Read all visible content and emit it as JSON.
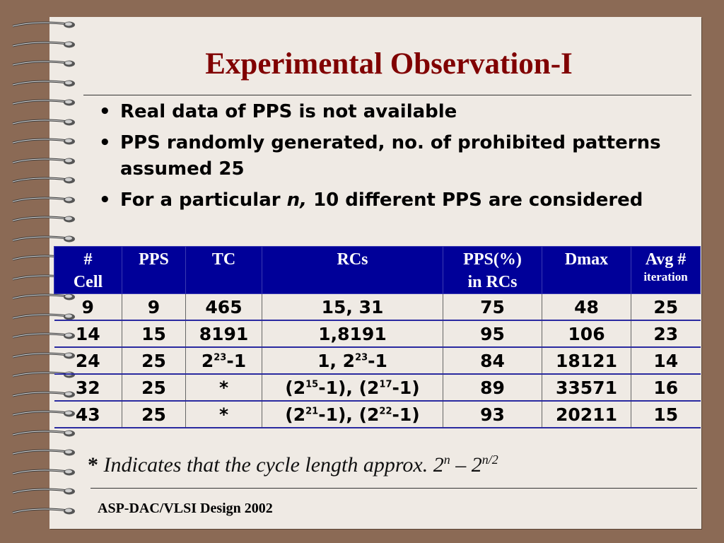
{
  "slide": {
    "title": "Experimental Observation-I",
    "bullets": [
      {
        "marker": "•",
        "parts": [
          {
            "t": "Real data of PPS is not available",
            "i": false
          }
        ]
      },
      {
        "marker": "•",
        "parts": [
          {
            "t": "PPS randomly generated, no. of prohibited patterns assumed  25",
            "i": false
          }
        ]
      },
      {
        "marker": "•",
        "parts": [
          {
            "t": "For a particular ",
            "i": false
          },
          {
            "t": "n,",
            "i": true
          },
          {
            "t": " 10 different PPS are considered",
            "i": false
          }
        ]
      }
    ],
    "table": {
      "headers": [
        {
          "lines": [
            "#",
            "Cell"
          ],
          "small": ""
        },
        {
          "lines": [
            "PPS"
          ],
          "small": ""
        },
        {
          "lines": [
            "TC"
          ],
          "small": ""
        },
        {
          "lines": [
            "RCs"
          ],
          "small": ""
        },
        {
          "lines": [
            "PPS(%)",
            "in RCs"
          ],
          "small": ""
        },
        {
          "lines": [
            "Dmax"
          ],
          "small": ""
        },
        {
          "lines": [
            "Avg #"
          ],
          "small": "iteration"
        }
      ],
      "rows": [
        [
          [
            [
              "9",
              ""
            ]
          ],
          [
            [
              "9",
              ""
            ]
          ],
          [
            [
              "465",
              ""
            ]
          ],
          [
            [
              "15, 31",
              ""
            ]
          ],
          [
            [
              "75",
              ""
            ]
          ],
          [
            [
              "48",
              ""
            ]
          ],
          [
            [
              "25",
              ""
            ]
          ]
        ],
        [
          [
            [
              "14",
              ""
            ]
          ],
          [
            [
              "15",
              ""
            ]
          ],
          [
            [
              "8191",
              ""
            ]
          ],
          [
            [
              "1,8191",
              ""
            ]
          ],
          [
            [
              "95",
              ""
            ]
          ],
          [
            [
              "106",
              ""
            ]
          ],
          [
            [
              "23",
              ""
            ]
          ]
        ],
        [
          [
            [
              "24",
              ""
            ]
          ],
          [
            [
              "25",
              ""
            ]
          ],
          [
            [
              "2",
              "23"
            ],
            [
              "-1",
              ""
            ]
          ],
          [
            [
              "1, 2",
              "23"
            ],
            [
              "-1",
              ""
            ]
          ],
          [
            [
              "84",
              ""
            ]
          ],
          [
            [
              "18121",
              ""
            ]
          ],
          [
            [
              "14",
              ""
            ]
          ]
        ],
        [
          [
            [
              "32",
              ""
            ]
          ],
          [
            [
              "25",
              ""
            ]
          ],
          [
            [
              "*",
              ""
            ]
          ],
          [
            [
              "(2",
              "15"
            ],
            [
              "-1), (2",
              "17"
            ],
            [
              "-1)",
              ""
            ]
          ],
          [
            [
              "89",
              ""
            ]
          ],
          [
            [
              "33571",
              ""
            ]
          ],
          [
            [
              "16",
              ""
            ]
          ]
        ],
        [
          [
            [
              "43",
              ""
            ]
          ],
          [
            [
              "25",
              ""
            ]
          ],
          [
            [
              "*",
              ""
            ]
          ],
          [
            [
              "(2",
              "21"
            ],
            [
              "-1), (2",
              "22"
            ],
            [
              "-1)",
              ""
            ]
          ],
          [
            [
              "93",
              ""
            ]
          ],
          [
            [
              "20211",
              ""
            ]
          ],
          [
            [
              "15",
              ""
            ]
          ]
        ]
      ]
    },
    "footnote": {
      "star": "*",
      "parts": [
        [
          "Indicates that the cycle length approx. 2",
          "n"
        ],
        [
          " – 2",
          "n/2"
        ]
      ]
    },
    "footer": "ASP-DAC/VLSI Design 2002"
  },
  "colors": {
    "title": "#800000",
    "header_bg": "#000099",
    "background": "#8b6a55",
    "paper": "#efeae4"
  }
}
